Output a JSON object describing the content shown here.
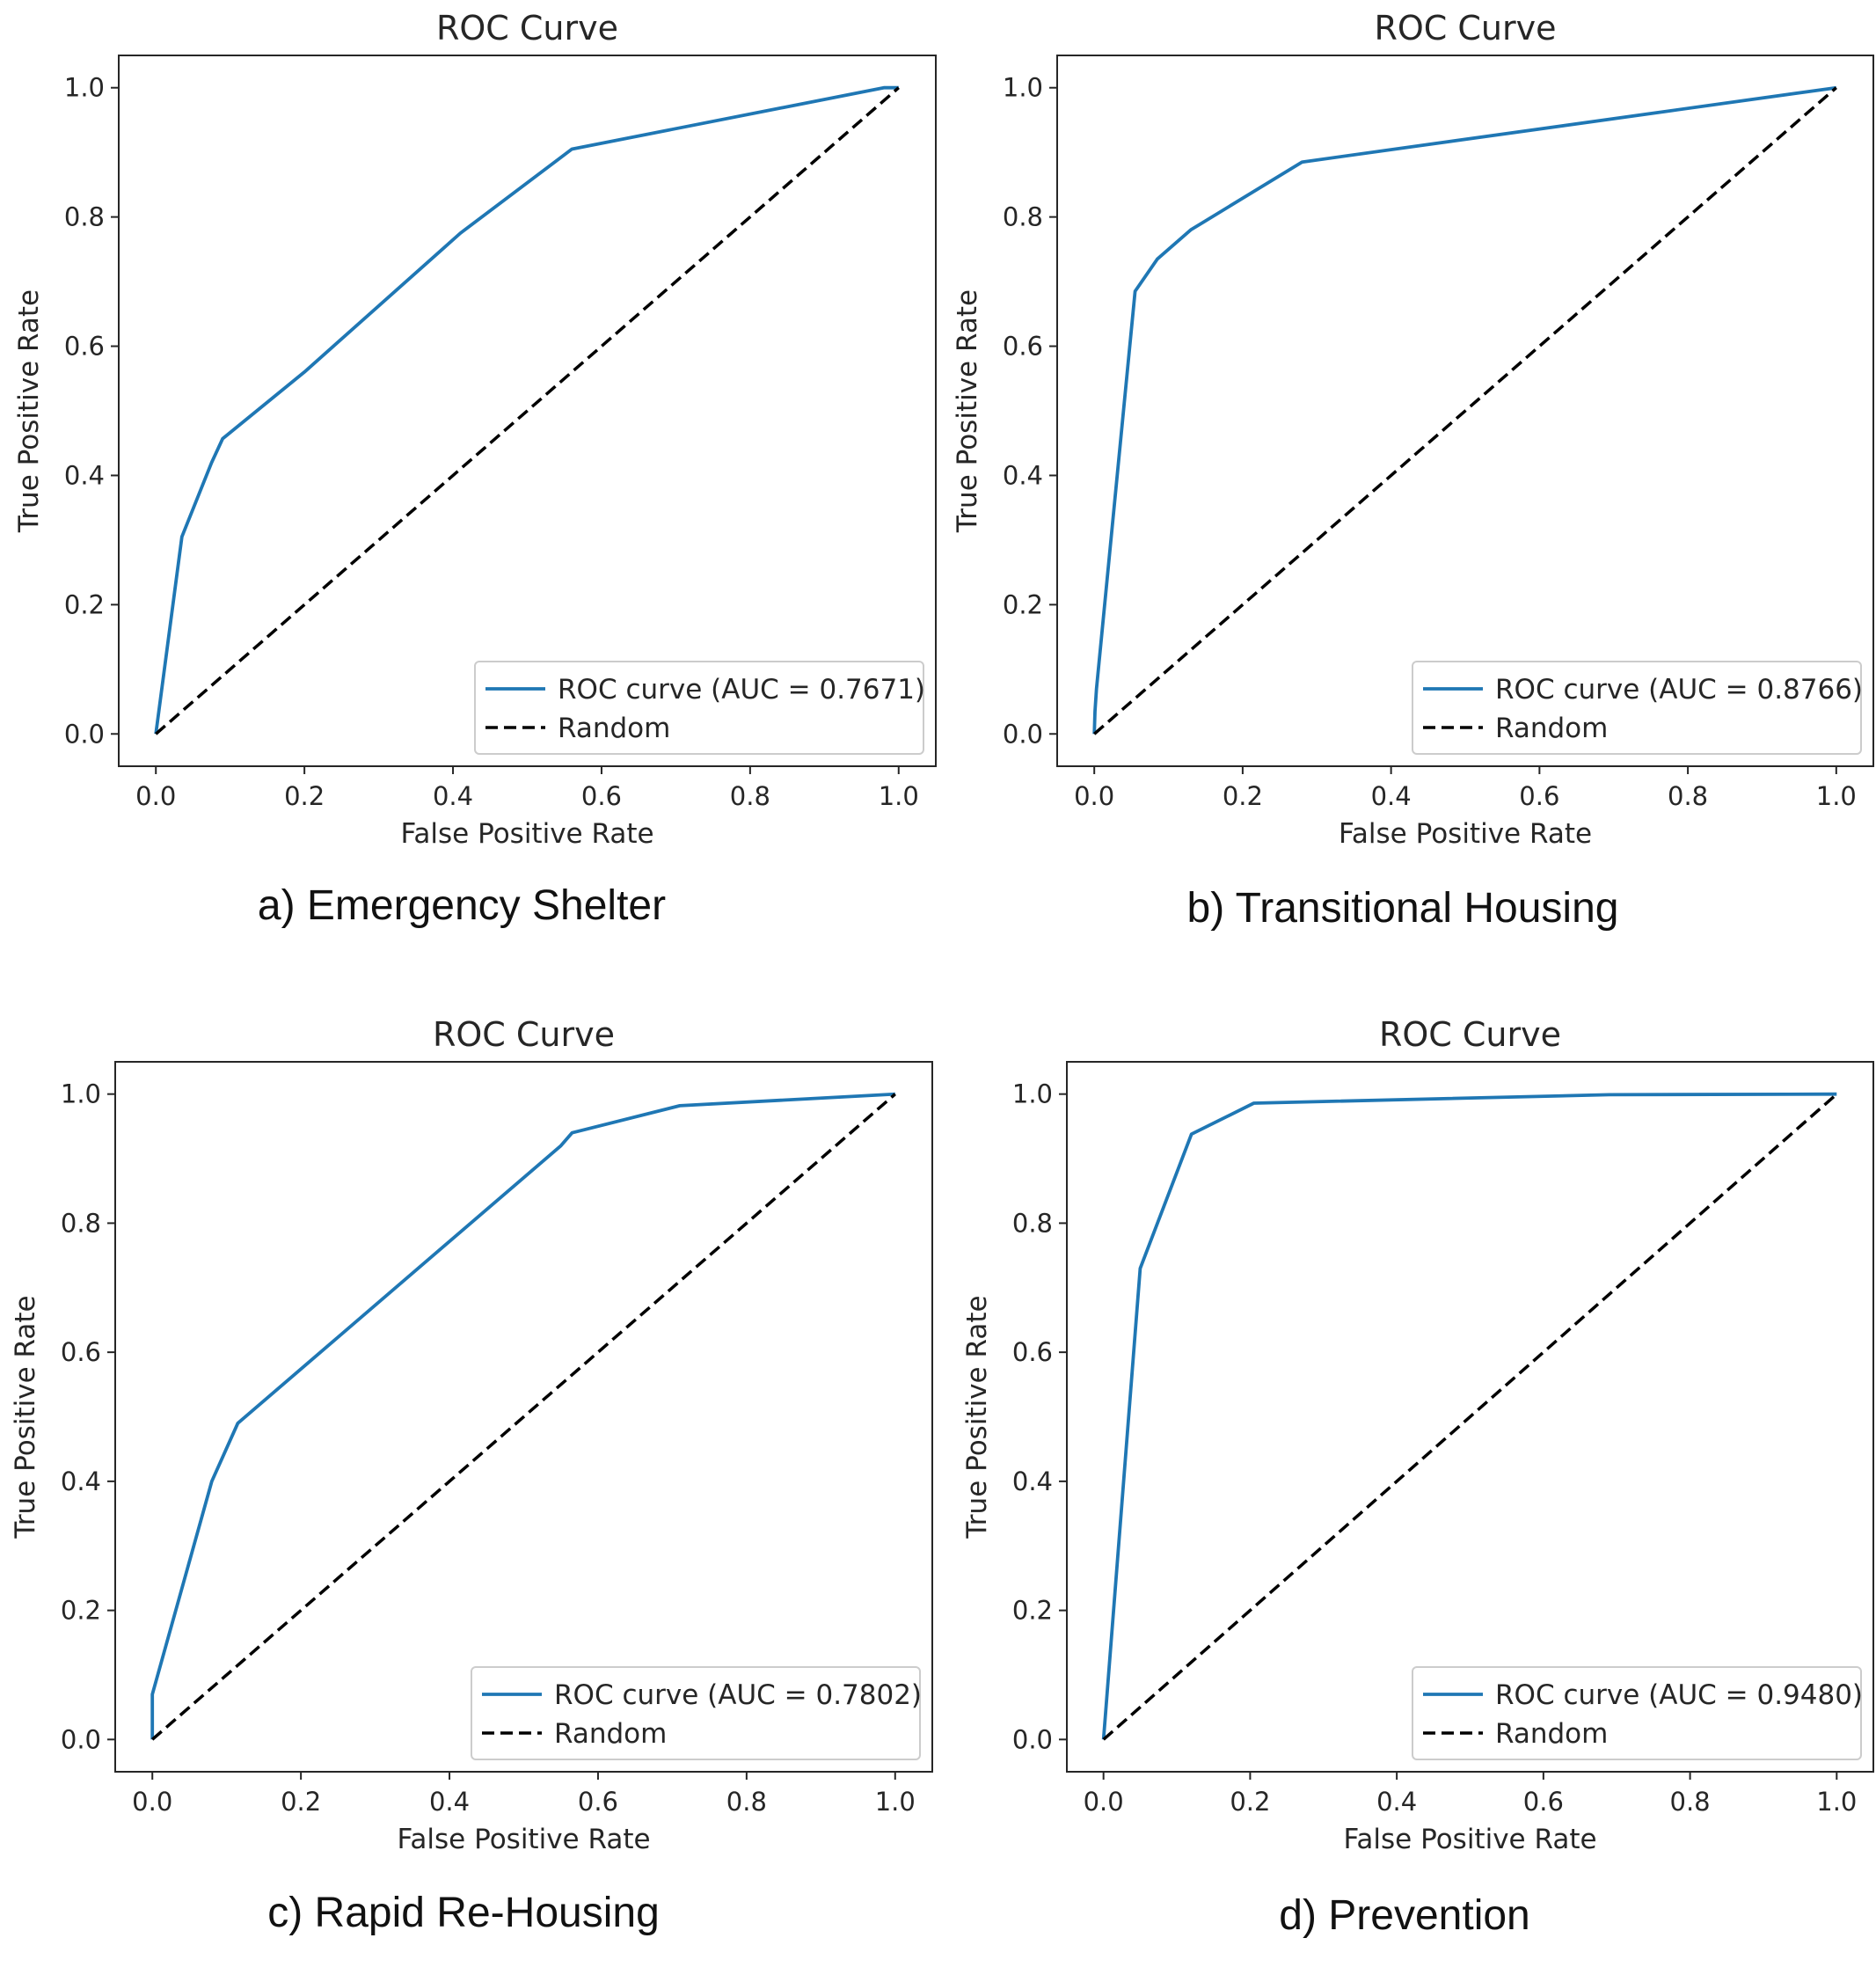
{
  "colors": {
    "roc_line": "#1f77b4",
    "random_line": "#000000",
    "axes": "#262626",
    "legend_border": "#cccccc"
  },
  "chart_data": [
    {
      "type": "line",
      "title": "ROC Curve",
      "xlabel": "False Positive Rate",
      "ylabel": "True Positive Rate",
      "xlim": [
        -0.05,
        1.05
      ],
      "ylim": [
        -0.05,
        1.05
      ],
      "xticks": [
        "0.0",
        "0.2",
        "0.4",
        "0.6",
        "0.8",
        "1.0"
      ],
      "yticks": [
        "0.0",
        "0.2",
        "0.4",
        "0.6",
        "0.8",
        "1.0"
      ],
      "legend_position": "lower-right",
      "caption": "a) Emergency Shelter",
      "series": [
        {
          "name": "ROC curve (AUC = 0.7671)",
          "style": "solid",
          "x": [
            0.0,
            0.035,
            0.075,
            0.09,
            0.2,
            0.41,
            0.56,
            0.98,
            1.0
          ],
          "y": [
            0.0,
            0.305,
            0.42,
            0.457,
            0.56,
            0.775,
            0.905,
            1.0,
            1.0
          ]
        },
        {
          "name": "Random",
          "style": "dashed",
          "x": [
            0.0,
            1.0
          ],
          "y": [
            0.0,
            1.0
          ]
        }
      ]
    },
    {
      "type": "line",
      "title": "ROC Curve",
      "xlabel": "False Positive Rate",
      "ylabel": "True Positive Rate",
      "xlim": [
        -0.05,
        1.05
      ],
      "ylim": [
        -0.05,
        1.05
      ],
      "xticks": [
        "0.0",
        "0.2",
        "0.4",
        "0.6",
        "0.8",
        "1.0"
      ],
      "yticks": [
        "0.0",
        "0.2",
        "0.4",
        "0.6",
        "0.8",
        "1.0"
      ],
      "legend_position": "lower-right",
      "caption": "b) Transitional Housing",
      "series": [
        {
          "name": "ROC curve (AUC = 0.8766)",
          "style": "solid",
          "x": [
            0.0,
            0.001,
            0.003,
            0.055,
            0.085,
            0.13,
            0.28,
            1.0
          ],
          "y": [
            0.0,
            0.035,
            0.07,
            0.685,
            0.735,
            0.78,
            0.885,
            1.0
          ]
        },
        {
          "name": "Random",
          "style": "dashed",
          "x": [
            0.0,
            1.0
          ],
          "y": [
            0.0,
            1.0
          ]
        }
      ]
    },
    {
      "type": "line",
      "title": "ROC Curve",
      "xlabel": "False Positive Rate",
      "ylabel": "True Positive Rate",
      "xlim": [
        -0.05,
        1.05
      ],
      "ylim": [
        -0.05,
        1.05
      ],
      "xticks": [
        "0.0",
        "0.2",
        "0.4",
        "0.6",
        "0.8",
        "1.0"
      ],
      "yticks": [
        "0.0",
        "0.2",
        "0.4",
        "0.6",
        "0.8",
        "1.0"
      ],
      "legend_position": "lower-right",
      "caption": "c) Rapid Re-Housing",
      "series": [
        {
          "name": "ROC curve (AUC = 0.7802)",
          "style": "solid",
          "x": [
            0.0,
            0.0,
            0.08,
            0.115,
            0.55,
            0.565,
            0.71,
            1.0
          ],
          "y": [
            0.0,
            0.07,
            0.4,
            0.49,
            0.92,
            0.94,
            0.982,
            1.0
          ]
        },
        {
          "name": "Random",
          "style": "dashed",
          "x": [
            0.0,
            1.0
          ],
          "y": [
            0.0,
            1.0
          ]
        }
      ]
    },
    {
      "type": "line",
      "title": "ROC Curve",
      "xlabel": "False Positive Rate",
      "ylabel": "True Positive Rate",
      "xlim": [
        -0.05,
        1.05
      ],
      "ylim": [
        -0.05,
        1.05
      ],
      "xticks": [
        "0.0",
        "0.2",
        "0.4",
        "0.6",
        "0.8",
        "1.0"
      ],
      "yticks": [
        "0.0",
        "0.2",
        "0.4",
        "0.6",
        "0.8",
        "1.0"
      ],
      "legend_position": "lower-right",
      "caption": "d) Prevention",
      "series": [
        {
          "name": "ROC curve (AUC = 0.9480)",
          "style": "solid",
          "x": [
            0.0,
            0.05,
            0.12,
            0.205,
            0.69,
            1.0
          ],
          "y": [
            0.0,
            0.73,
            0.938,
            0.986,
            0.999,
            1.0
          ]
        },
        {
          "name": "Random",
          "style": "dashed",
          "x": [
            0.0,
            1.0
          ],
          "y": [
            0.0,
            1.0
          ]
        }
      ]
    }
  ]
}
